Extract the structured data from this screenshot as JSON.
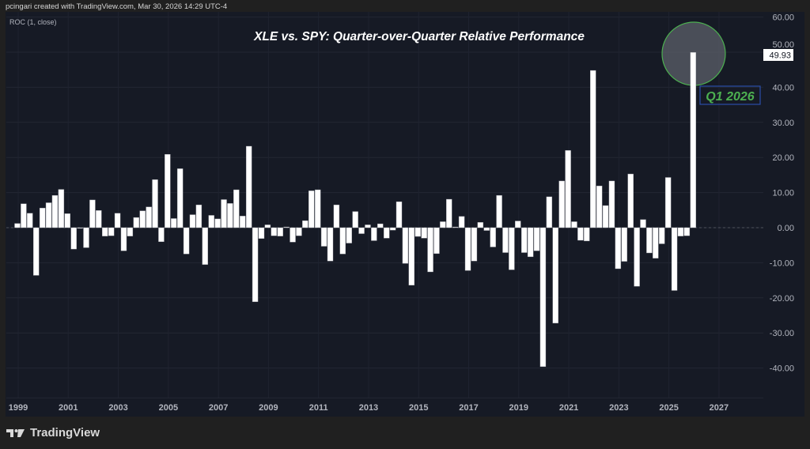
{
  "credit": "pcingari created with TradingView.com, Mar 30, 2026 14:29 UTC-4",
  "indicator_label": "ROC (1, close)",
  "brand": "TradingView",
  "colors": {
    "bar": "#ffffff",
    "background": "#161a25",
    "circle_stroke": "#4caf50",
    "label_text": "#4caf50",
    "label_border": "#2a4ea8"
  },
  "chart_data": {
    "type": "bar",
    "title": "XLE vs. SPY: Quarter-over-Quarter Relative Performance",
    "xlabel": "",
    "ylabel": "",
    "start_period": "1999 Q1",
    "frequency": "quarterly",
    "ylim": [
      -50,
      60
    ],
    "yticks": [
      "60.00",
      "50.00",
      "40.00",
      "30.00",
      "20.00",
      "10.00",
      "0.00",
      "-10.00",
      "-20.00",
      "-30.00",
      "-40.00"
    ],
    "ytick_values": [
      60,
      50,
      40,
      30,
      20,
      10,
      0,
      -10,
      -20,
      -30,
      -40
    ],
    "xticks": [
      "1999",
      "2001",
      "2003",
      "2005",
      "2007",
      "2009",
      "2011",
      "2013",
      "2015",
      "2017",
      "2019",
      "2021",
      "2023",
      "2025",
      "2027"
    ],
    "grid": true,
    "last_value_label": "49.93",
    "annotation": "Q1 2026",
    "values": [
      1.2,
      6.8,
      4.1,
      -13.6,
      5.6,
      7.1,
      9.2,
      10.9,
      4.0,
      -6.1,
      -0.2,
      -5.7,
      7.9,
      4.9,
      -2.4,
      -2.3,
      4.1,
      -6.6,
      -2.4,
      2.9,
      4.8,
      5.9,
      13.7,
      -4.0,
      20.9,
      2.6,
      16.8,
      -7.5,
      3.7,
      6.5,
      -10.5,
      3.5,
      2.5,
      8.0,
      6.9,
      10.8,
      3.3,
      23.2,
      -21.1,
      -3.1,
      0.8,
      -2.3,
      -2.4,
      0.2,
      -4.1,
      -2.3,
      2.0,
      10.5,
      10.8,
      -5.3,
      -9.5,
      6.5,
      -7.5,
      -4.4,
      4.6,
      -1.7,
      0.8,
      -3.7,
      1.1,
      -3.0,
      -0.7,
      7.4,
      -10.2,
      -16.4,
      -2.5,
      -3.0,
      -12.6,
      -7.4,
      1.7,
      8.1,
      0.2,
      3.2,
      -12.2,
      -9.5,
      1.5,
      -0.8,
      -5.5,
      9.2,
      -7.1,
      -12.0,
      1.9,
      -7.1,
      -8.3,
      -6.6,
      -39.6,
      8.8,
      -27.2,
      13.3,
      22.0,
      1.7,
      -3.6,
      -3.8,
      44.8,
      11.9,
      6.3,
      13.3,
      -11.7,
      -9.6,
      15.3,
      -16.7,
      2.3,
      -7.2,
      -8.7,
      -4.6,
      14.3,
      -17.9,
      -2.4,
      -2.3,
      49.93
    ]
  }
}
